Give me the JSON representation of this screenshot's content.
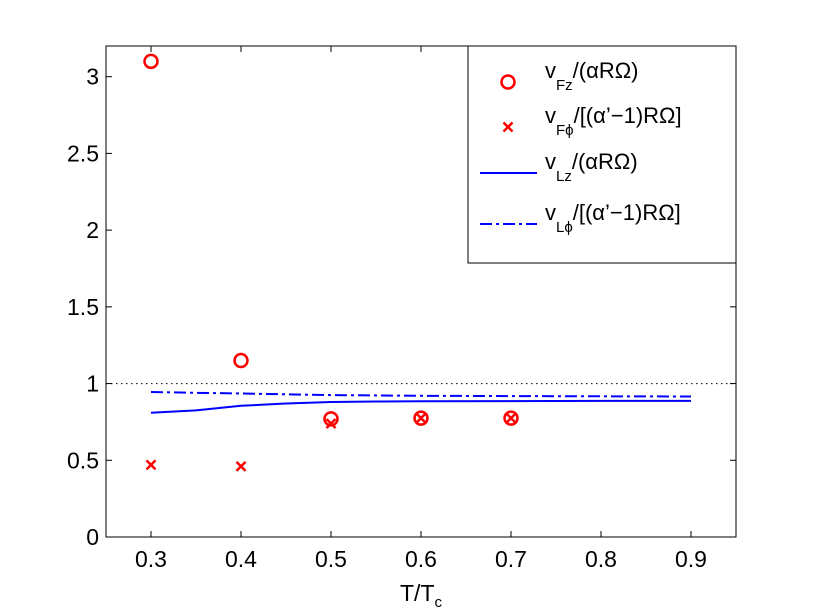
{
  "chart_data": {
    "type": "scatter",
    "xlabel": {
      "main": "T/T",
      "sub": "c"
    },
    "ylabel": "",
    "xlim": [
      0.25,
      0.95
    ],
    "ylim": [
      0,
      3.2
    ],
    "xticks": [
      "0.3",
      "0.4",
      "0.5",
      "0.6",
      "0.7",
      "0.8",
      "0.9"
    ],
    "yticks": [
      "0",
      "0.5",
      "1",
      "1.5",
      "2",
      "2.5",
      "3"
    ],
    "grid": false,
    "legend_position": "top-right",
    "reference_line": {
      "y": 1,
      "style": "dotted",
      "color": "#000000"
    },
    "series": [
      {
        "key": "vFz",
        "marker": "circle",
        "color": "#ff0000",
        "legend": {
          "pre": "v",
          "sub": "Fz",
          "post": "/(αRΩ)"
        },
        "x": [
          0.3,
          0.4,
          0.5,
          0.6,
          0.7
        ],
        "y": [
          3.1,
          1.15,
          0.77,
          0.775,
          0.775
        ]
      },
      {
        "key": "vFphi",
        "marker": "x",
        "color": "#ff0000",
        "legend": {
          "pre": "v",
          "sub": "Fϕ",
          "post": "/[(α’−1)RΩ]"
        },
        "x": [
          0.3,
          0.4,
          0.5,
          0.6,
          0.7
        ],
        "y": [
          0.47,
          0.46,
          0.74,
          0.775,
          0.775
        ]
      },
      {
        "key": "vLz",
        "line": "solid",
        "color": "#0000ff",
        "legend": {
          "pre": "v",
          "sub": "Lz",
          "post": "/(αRΩ)"
        },
        "x": [
          0.3,
          0.35,
          0.4,
          0.45,
          0.5,
          0.55,
          0.6,
          0.7,
          0.8,
          0.9
        ],
        "y": [
          0.81,
          0.825,
          0.855,
          0.87,
          0.88,
          0.883,
          0.885,
          0.886,
          0.887,
          0.887
        ]
      },
      {
        "key": "vLphi",
        "line": "dashdot",
        "color": "#0000ff",
        "legend": {
          "pre": "v",
          "sub": "Lϕ",
          "post": "/[(α’−1)RΩ]"
        },
        "x": [
          0.3,
          0.35,
          0.4,
          0.5,
          0.6,
          0.7,
          0.8,
          0.9
        ],
        "y": [
          0.945,
          0.94,
          0.935,
          0.925,
          0.92,
          0.918,
          0.917,
          0.916
        ]
      }
    ]
  }
}
